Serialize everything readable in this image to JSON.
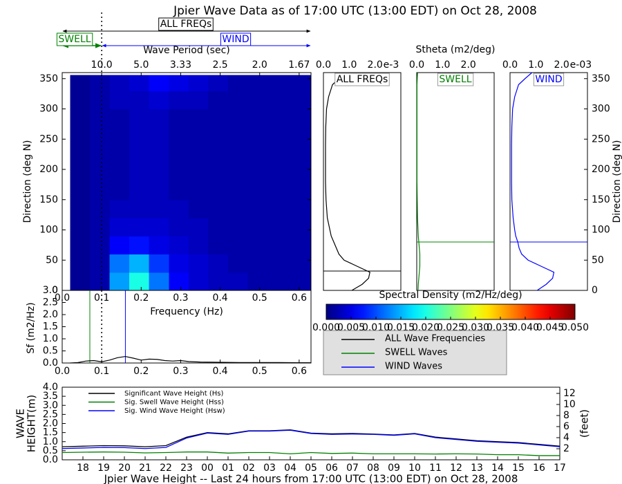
{
  "chart_data": [
    {
      "type": "heatmap",
      "title": "Jpier Wave Data as of 17:00 UTC (13:00 EDT) on Oct 28, 2008",
      "annotations": {
        "all": "ALL FREQs",
        "swell": "SWELL",
        "wind": "WIND"
      },
      "separation_freq": 0.1,
      "top_label": "Wave Period (sec)",
      "top_ticks": [
        {
          "value": 0.1,
          "label": "10.0"
        },
        {
          "value": 0.2,
          "label": "5.0"
        },
        {
          "value": 0.3,
          "label": "3.33"
        },
        {
          "value": 0.4,
          "label": "2.5"
        },
        {
          "value": 0.5,
          "label": "2.0"
        },
        {
          "value": 0.6,
          "label": "1.67"
        }
      ],
      "xlabel": "Frequency (Hz)",
      "ylabel": "Direction (deg N)",
      "xlim": [
        0,
        0.63
      ],
      "xticks": [
        {
          "value": 0,
          "label": "0.0"
        },
        0.1,
        0.2,
        0.3,
        0.4,
        0.5,
        0.6
      ],
      "ylim": [
        0,
        360
      ],
      "yticks": [
        0,
        50,
        100,
        150,
        200,
        250,
        300,
        350
      ],
      "x_edges": [
        0.02,
        0.07,
        0.12,
        0.17,
        0.22,
        0.27,
        0.32,
        0.37,
        0.42,
        0.47,
        0.52,
        0.57,
        0.63
      ],
      "y_edges": [
        0,
        30,
        60,
        90,
        120,
        150,
        180,
        210,
        240,
        270,
        300,
        330,
        356
      ],
      "z": [
        [
          0.001,
          0.002,
          0.014,
          0.02,
          0.012,
          0.006,
          0.004,
          0.003,
          0.003,
          0.002,
          0.002,
          0.002
        ],
        [
          0.001,
          0.002,
          0.012,
          0.015,
          0.009,
          0.005,
          0.004,
          0.003,
          0.002,
          0.002,
          0.002,
          0.002
        ],
        [
          0.001,
          0.002,
          0.006,
          0.007,
          0.005,
          0.004,
          0.003,
          0.002,
          0.002,
          0.002,
          0.002,
          0.002
        ],
        [
          0.001,
          0.002,
          0.004,
          0.004,
          0.004,
          0.003,
          0.003,
          0.002,
          0.002,
          0.002,
          0.002,
          0.002
        ],
        [
          0.001,
          0.002,
          0.003,
          0.003,
          0.003,
          0.003,
          0.002,
          0.002,
          0.002,
          0.002,
          0.002,
          0.002
        ],
        [
          0.001,
          0.002,
          0.002,
          0.003,
          0.003,
          0.002,
          0.002,
          0.002,
          0.002,
          0.002,
          0.002,
          0.002
        ],
        [
          0.001,
          0.002,
          0.002,
          0.003,
          0.003,
          0.002,
          0.002,
          0.002,
          0.002,
          0.002,
          0.002,
          0.002
        ],
        [
          0.001,
          0.002,
          0.002,
          0.003,
          0.003,
          0.002,
          0.002,
          0.002,
          0.002,
          0.002,
          0.002,
          0.002
        ],
        [
          0.001,
          0.002,
          0.002,
          0.003,
          0.003,
          0.002,
          0.002,
          0.002,
          0.002,
          0.002,
          0.002,
          0.002
        ],
        [
          0.001,
          0.002,
          0.002,
          0.003,
          0.003,
          0.002,
          0.002,
          0.002,
          0.002,
          0.002,
          0.002,
          0.002
        ],
        [
          0.001,
          0.002,
          0.003,
          0.003,
          0.004,
          0.003,
          0.003,
          0.002,
          0.002,
          0.002,
          0.002,
          0.002
        ],
        [
          0.001,
          0.002,
          0.003,
          0.004,
          0.006,
          0.005,
          0.004,
          0.003,
          0.002,
          0.002,
          0.002,
          0.002
        ]
      ],
      "colormap": "jet",
      "zlim": [
        0,
        0.05
      ],
      "colorbar_label": "Spectral Density (m2/Hz/deg)",
      "colorbar_ticks": [
        {
          "value": 0,
          "label": "0.000"
        },
        {
          "value": 0.005,
          "label": "0.005"
        },
        {
          "value": 0.01,
          "label": "0.010"
        },
        {
          "value": 0.015,
          "label": "0.015"
        },
        {
          "value": 0.02,
          "label": "0.020"
        },
        {
          "value": 0.025,
          "label": "0.025"
        },
        {
          "value": 0.03,
          "label": "0.030"
        },
        {
          "value": 0.035,
          "label": "0.035"
        },
        {
          "value": 0.04,
          "label": "0.040"
        },
        {
          "value": 0.045,
          "label": "0.045"
        },
        {
          "value": 0.05,
          "label": "0.050"
        }
      ]
    },
    {
      "type": "direction_spectrum",
      "title": "ALL FREQs",
      "color": "#000000",
      "offset_label": "e-3",
      "xlim": [
        0,
        3
      ],
      "xticks": [
        {
          "value": 0,
          "label": "0.0"
        },
        {
          "value": 1,
          "label": "1.0"
        },
        {
          "value": 2,
          "label": "2.0"
        }
      ],
      "ylim": [
        0,
        360
      ],
      "directions": [
        0,
        10,
        20,
        30,
        40,
        50,
        60,
        70,
        80,
        90,
        100,
        120,
        150,
        180,
        210,
        240,
        270,
        300,
        320,
        340,
        350,
        360
      ],
      "values": [
        1.1,
        1.5,
        1.75,
        1.8,
        1.3,
        0.8,
        0.6,
        0.5,
        0.4,
        0.3,
        0.25,
        0.15,
        0.1,
        0.08,
        0.08,
        0.08,
        0.09,
        0.12,
        0.2,
        0.35,
        0.6,
        0.9
      ],
      "mean_direction": 32
    },
    {
      "type": "direction_spectrum",
      "title": "SWELL",
      "color": "#008000",
      "xlabel": "Stheta (m2/deg)",
      "xlim": [
        0,
        3
      ],
      "xticks": [
        {
          "value": 0,
          "label": "0.0"
        },
        {
          "value": 1,
          "label": "1.0"
        },
        {
          "value": 2,
          "label": "2.0"
        }
      ],
      "ylim": [
        0,
        360
      ],
      "directions": [
        0,
        10,
        20,
        30,
        40,
        50,
        60,
        70,
        80,
        90,
        100,
        120,
        150,
        180,
        210,
        240,
        270,
        300,
        320,
        340,
        350,
        360
      ],
      "values": [
        0.05,
        0.06,
        0.08,
        0.1,
        0.12,
        0.12,
        0.12,
        0.1,
        0.08,
        0.06,
        0.05,
        0.03,
        0.02,
        0.01,
        0.01,
        0.01,
        0.01,
        0.01,
        0.01,
        0.01,
        0.02,
        0.03
      ],
      "mean_direction": 80
    },
    {
      "type": "direction_spectrum",
      "title": "WIND",
      "color": "#0000ff",
      "offset_label": "e-03",
      "ylabel": "Direction (deg N)",
      "xlim": [
        0,
        3
      ],
      "xticks": [
        {
          "value": 0,
          "label": "0.0"
        },
        {
          "value": 1,
          "label": "1.0"
        },
        {
          "value": 2,
          "label": "2.0"
        }
      ],
      "ylim": [
        0,
        360
      ],
      "yticks": [
        0,
        50,
        100,
        150,
        200,
        250,
        300,
        350
      ],
      "directions": [
        0,
        10,
        20,
        30,
        40,
        50,
        60,
        70,
        80,
        90,
        100,
        120,
        150,
        180,
        210,
        240,
        270,
        300,
        320,
        340,
        350,
        360
      ],
      "values": [
        1.05,
        1.4,
        1.65,
        1.7,
        1.2,
        0.7,
        0.45,
        0.35,
        0.3,
        0.22,
        0.18,
        0.12,
        0.07,
        0.06,
        0.06,
        0.06,
        0.07,
        0.1,
        0.18,
        0.33,
        0.58,
        0.85
      ],
      "mean_direction": 80
    },
    {
      "type": "line",
      "ylabel": "Sf (m2/Hz)",
      "xlim": [
        0,
        0.63
      ],
      "xticks": [
        {
          "value": 0,
          "label": "0.0"
        },
        0.1,
        0.2,
        0.3,
        0.4,
        0.5,
        0.6
      ],
      "ylim": [
        0,
        3
      ],
      "yticks": [
        {
          "value": 0,
          "label": "0.0"
        },
        0.5,
        {
          "value": 1,
          "label": "1.0"
        },
        1.5,
        {
          "value": 2,
          "label": "2.0"
        },
        2.5,
        {
          "value": 3,
          "label": "3.0"
        }
      ],
      "x": [
        0.02,
        0.04,
        0.06,
        0.08,
        0.1,
        0.12,
        0.14,
        0.16,
        0.18,
        0.2,
        0.22,
        0.24,
        0.26,
        0.28,
        0.3,
        0.32,
        0.35,
        0.4,
        0.45,
        0.5,
        0.55,
        0.6,
        0.63
      ],
      "series": [
        {
          "name": "ALL Wave Frequencies",
          "color": "#000000",
          "values": [
            0,
            0.02,
            0.08,
            0.1,
            0.05,
            0.12,
            0.22,
            0.27,
            0.2,
            0.12,
            0.16,
            0.15,
            0.1,
            0.08,
            0.1,
            0.06,
            0.04,
            0.03,
            0.02,
            0.02,
            0.02,
            0.01,
            0.01
          ]
        }
      ],
      "peak_lines": [
        {
          "name": "SWELL Waves",
          "color": "#008000",
          "value": 0.07
        },
        {
          "name": "WIND Waves",
          "color": "#0000ff",
          "value": 0.16
        }
      ]
    },
    {
      "type": "line",
      "ylabel": [
        "WAVE",
        "HEIGHT(m)"
      ],
      "y2label": "(feet)",
      "xlabel": "Jpier Wave Height -- Last 24 hours from 17:00 UTC (13:00 EDT) on Oct 28, 2008",
      "categories": [
        null,
        "18",
        "19",
        "20",
        "21",
        "22",
        "23",
        "00",
        "01",
        "02",
        "03",
        "04",
        "05",
        "06",
        "07",
        "08",
        "09",
        "10",
        "11",
        "12",
        "13",
        "14",
        "15",
        "16",
        "17"
      ],
      "ylim": [
        0,
        4
      ],
      "yticks": [
        {
          "value": 0,
          "label": "0.0"
        },
        0.5,
        {
          "value": 1,
          "label": "1.0"
        },
        1.5,
        {
          "value": 2,
          "label": "2.0"
        },
        2.5,
        {
          "value": 3,
          "label": "3.0"
        },
        3.5,
        {
          "value": 4,
          "label": "4.0"
        }
      ],
      "y2lim": [
        0,
        13.12
      ],
      "y2ticks": [
        2,
        4,
        6,
        8,
        10,
        12
      ],
      "legend": "upper left",
      "series": [
        {
          "name": "Significant Wave Height (Hs)",
          "color": "#000000",
          "values": [
            0.72,
            0.75,
            0.78,
            0.77,
            0.72,
            0.78,
            1.25,
            1.5,
            1.43,
            1.6,
            1.6,
            1.65,
            1.47,
            1.43,
            1.45,
            1.42,
            1.37,
            1.45,
            1.25,
            1.15,
            1.05,
            1.0,
            0.95,
            0.85,
            0.75
          ]
        },
        {
          "name": "Sig. Swell Wave Height (Hss)",
          "color": "#008000",
          "values": [
            0.4,
            0.42,
            0.43,
            0.42,
            0.38,
            0.4,
            0.43,
            0.43,
            0.37,
            0.4,
            0.4,
            0.33,
            0.4,
            0.35,
            0.37,
            0.33,
            0.33,
            0.33,
            0.32,
            0.33,
            0.32,
            0.28,
            0.28,
            0.23,
            0.23
          ]
        },
        {
          "name": "Sig. Wind Wave Height (Hsw)",
          "color": "#0000ff",
          "values": [
            0.62,
            0.65,
            0.68,
            0.67,
            0.62,
            0.68,
            1.2,
            1.47,
            1.4,
            1.58,
            1.58,
            1.63,
            1.45,
            1.4,
            1.42,
            1.4,
            1.35,
            1.43,
            1.22,
            1.12,
            1.02,
            0.97,
            0.92,
            0.82,
            0.72
          ]
        }
      ]
    }
  ]
}
